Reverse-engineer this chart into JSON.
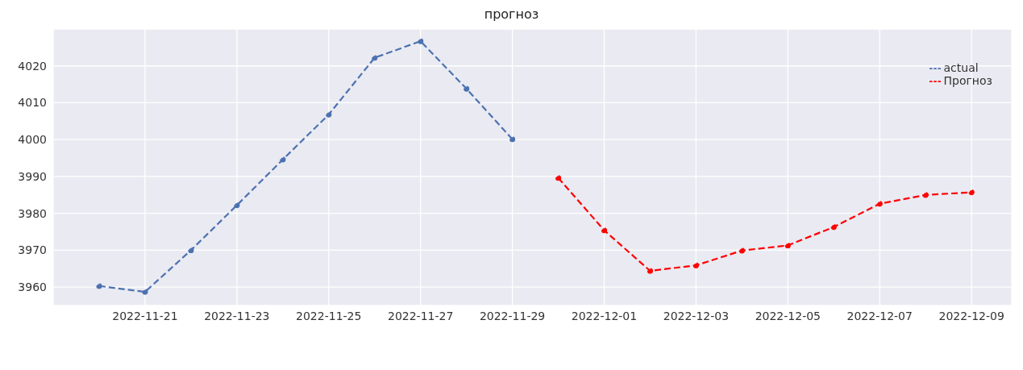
{
  "chart_data": {
    "type": "line",
    "title": "прогноз",
    "xlim": [
      "2022-11-19",
      "2022-12-09T21:00"
    ],
    "ylim": [
      3955,
      4030
    ],
    "xticks": [
      "2022-11-21",
      "2022-11-23",
      "2022-11-25",
      "2022-11-27",
      "2022-11-29",
      "2022-12-01",
      "2022-12-03",
      "2022-12-05",
      "2022-12-07",
      "2022-12-09"
    ],
    "yticks": [
      3960,
      3970,
      3980,
      3990,
      4000,
      4010,
      4020
    ],
    "grid": true,
    "legend": "top right",
    "marker": "circle",
    "line_style": "dashed",
    "series": [
      {
        "name": "actual",
        "color": "#4c72b0",
        "x": [
          "2022-11-20",
          "2022-11-21",
          "2022-11-22",
          "2022-11-23",
          "2022-11-24",
          "2022-11-25",
          "2022-11-26",
          "2022-11-27",
          "2022-11-28",
          "2022-11-29"
        ],
        "values": [
          3960.3,
          3958.7,
          3970,
          3982.2,
          3994.6,
          4006.8,
          4022.2,
          4026.7,
          4013.8,
          4000.1
        ]
      },
      {
        "name": "Прогноз",
        "color": "#ff0000",
        "x": [
          "2022-11-30",
          "2022-12-01",
          "2022-12-02",
          "2022-12-03",
          "2022-12-04",
          "2022-12-05",
          "2022-12-06",
          "2022-12-07",
          "2022-12-08",
          "2022-12-09"
        ],
        "values": [
          3989.6,
          3975.4,
          3964.4,
          3965.9,
          3969.9,
          3971.3,
          3976.3,
          3982.6,
          3985.0,
          3985.7
        ]
      }
    ]
  }
}
